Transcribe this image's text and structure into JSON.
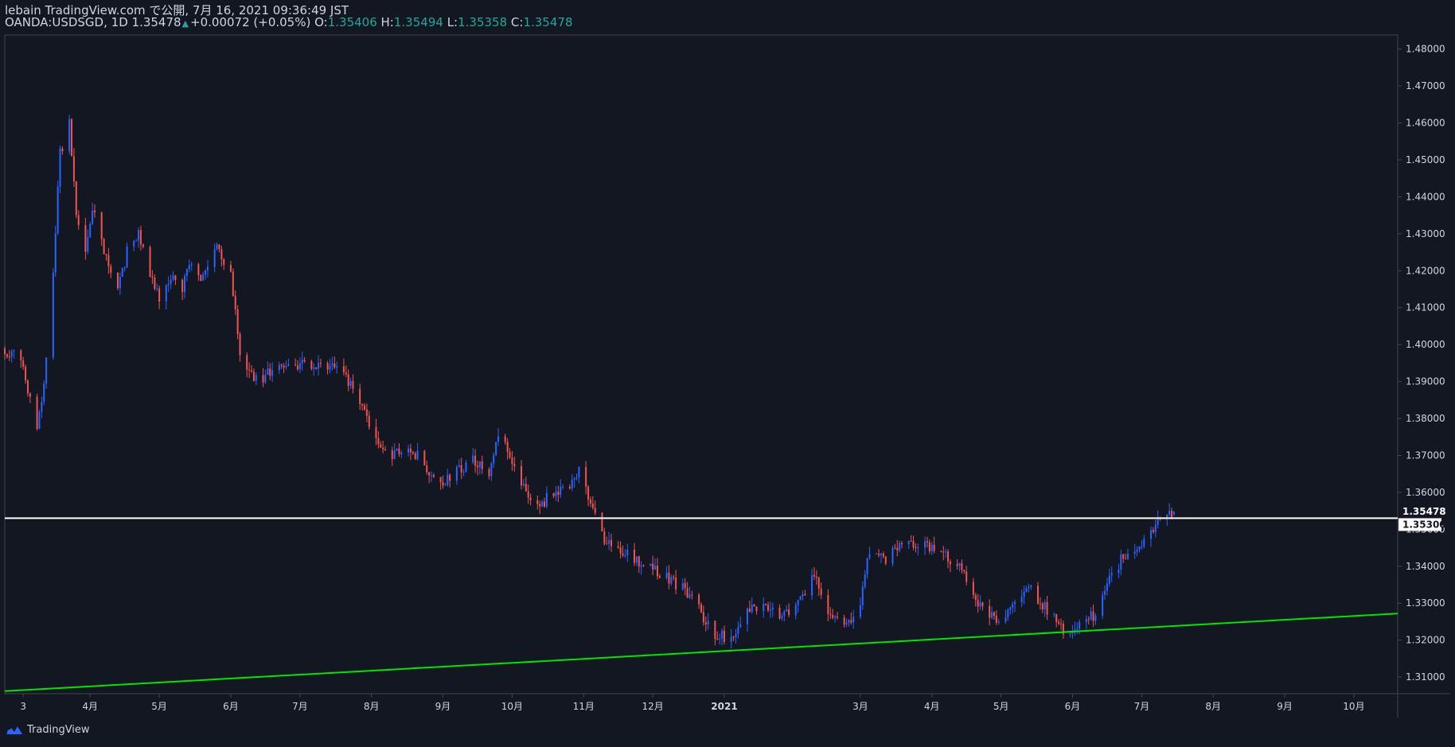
{
  "header": {
    "line1": "lebain TradingView.com で公開, 7月 16, 2021 09:36:49 JST",
    "symbol": "OANDA:USDSGD, 1D",
    "last": "1.35478",
    "change": "+0.00072 (+0.05%)",
    "o_label": "O:",
    "o_value": "1.35406",
    "h_label": "H:",
    "h_value": "1.35494",
    "l_label": "L:",
    "l_value": "1.35358",
    "c_label": "C:",
    "c_value": "1.35478"
  },
  "footer": {
    "brand": "TradingView",
    "logo_icon": "tradingview-logo-icon"
  },
  "colors": {
    "background": "#131722",
    "up": "#2962ff",
    "down": "#ef5350",
    "support_line": "#00e600",
    "resistance_line": "#ffffff",
    "axis_text": "#d1d4dc",
    "frame": "#434651"
  },
  "chart_data": {
    "type": "candlestick",
    "symbol": "OANDA:USDSGD",
    "interval": "1D",
    "ylim": [
      1.3055,
      1.4838
    ],
    "y_ticks": [
      "1.48000",
      "1.47000",
      "1.46000",
      "1.45000",
      "1.44000",
      "1.43000",
      "1.42000",
      "1.41000",
      "1.40000",
      "1.39000",
      "1.38000",
      "1.37000",
      "1.36000",
      "1.35000",
      "1.34000",
      "1.33000",
      "1.32000",
      "1.31000"
    ],
    "x_ticks": [
      {
        "label": "3",
        "date": "2020-03-03"
      },
      {
        "label": "4月",
        "date": "2020-04-01"
      },
      {
        "label": "5月",
        "date": "2020-05-01"
      },
      {
        "label": "6月",
        "date": "2020-06-01"
      },
      {
        "label": "7月",
        "date": "2020-07-01"
      },
      {
        "label": "8月",
        "date": "2020-08-01"
      },
      {
        "label": "9月",
        "date": "2020-09-01"
      },
      {
        "label": "10月",
        "date": "2020-10-01"
      },
      {
        "label": "11月",
        "date": "2020-11-01"
      },
      {
        "label": "12月",
        "date": "2020-12-01"
      },
      {
        "label": "2021",
        "date": "2021-01-01"
      },
      {
        "label": "3月",
        "date": "2021-03-01"
      },
      {
        "label": "4月",
        "date": "2021-04-01"
      },
      {
        "label": "5月",
        "date": "2021-05-01"
      },
      {
        "label": "6月",
        "date": "2021-06-01"
      },
      {
        "label": "7月",
        "date": "2021-07-01"
      },
      {
        "label": "8月",
        "date": "2021-08-01"
      },
      {
        "label": "9月",
        "date": "2021-09-01"
      },
      {
        "label": "10月",
        "date": "2021-10-01"
      }
    ],
    "price_path": [
      [
        "2020-02-24",
        1.399
      ],
      [
        "2020-03-02",
        1.395
      ],
      [
        "2020-03-09",
        1.378
      ],
      [
        "2020-03-12",
        1.39
      ],
      [
        "2020-03-16",
        1.42
      ],
      [
        "2020-03-19",
        1.452
      ],
      [
        "2020-03-23",
        1.46
      ],
      [
        "2020-03-26",
        1.435
      ],
      [
        "2020-03-30",
        1.425
      ],
      [
        "2020-04-02",
        1.438
      ],
      [
        "2020-04-07",
        1.425
      ],
      [
        "2020-04-13",
        1.415
      ],
      [
        "2020-04-17",
        1.425
      ],
      [
        "2020-04-22",
        1.431
      ],
      [
        "2020-04-27",
        1.42
      ],
      [
        "2020-05-01",
        1.412
      ],
      [
        "2020-05-06",
        1.419
      ],
      [
        "2020-05-11",
        1.415
      ],
      [
        "2020-05-15",
        1.423
      ],
      [
        "2020-05-20",
        1.418
      ],
      [
        "2020-05-26",
        1.426
      ],
      [
        "2020-06-01",
        1.42
      ],
      [
        "2020-06-05",
        1.397
      ],
      [
        "2020-06-10",
        1.392
      ],
      [
        "2020-06-15",
        1.39
      ],
      [
        "2020-06-20",
        1.395
      ],
      [
        "2020-06-30",
        1.394
      ],
      [
        "2020-07-10",
        1.395
      ],
      [
        "2020-07-20",
        1.392
      ],
      [
        "2020-07-27",
        1.385
      ],
      [
        "2020-08-03",
        1.375
      ],
      [
        "2020-08-10",
        1.37
      ],
      [
        "2020-08-17",
        1.372
      ],
      [
        "2020-08-24",
        1.368
      ],
      [
        "2020-08-31",
        1.362
      ],
      [
        "2020-09-07",
        1.366
      ],
      [
        "2020-09-14",
        1.369
      ],
      [
        "2020-09-21",
        1.364
      ],
      [
        "2020-09-24",
        1.375
      ],
      [
        "2020-09-28",
        1.372
      ],
      [
        "2020-10-05",
        1.362
      ],
      [
        "2020-10-12",
        1.356
      ],
      [
        "2020-10-19",
        1.36
      ],
      [
        "2020-10-26",
        1.362
      ],
      [
        "2020-10-30",
        1.366
      ],
      [
        "2020-11-04",
        1.356
      ],
      [
        "2020-11-09",
        1.348
      ],
      [
        "2020-11-16",
        1.345
      ],
      [
        "2020-11-23",
        1.342
      ],
      [
        "2020-11-30",
        1.34
      ],
      [
        "2020-12-07",
        1.337
      ],
      [
        "2020-12-14",
        1.334
      ],
      [
        "2020-12-21",
        1.328
      ],
      [
        "2020-12-28",
        1.322
      ],
      [
        "2021-01-05",
        1.32
      ],
      [
        "2021-01-12",
        1.328
      ],
      [
        "2021-01-19",
        1.33
      ],
      [
        "2021-01-26",
        1.326
      ],
      [
        "2021-02-02",
        1.33
      ],
      [
        "2021-02-09",
        1.337
      ],
      [
        "2021-02-16",
        1.326
      ],
      [
        "2021-02-23",
        1.324
      ],
      [
        "2021-03-01",
        1.33
      ],
      [
        "2021-03-05",
        1.344
      ],
      [
        "2021-03-12",
        1.342
      ],
      [
        "2021-03-19",
        1.345
      ],
      [
        "2021-03-26",
        1.346
      ],
      [
        "2021-04-02",
        1.344
      ],
      [
        "2021-04-09",
        1.342
      ],
      [
        "2021-04-16",
        1.337
      ],
      [
        "2021-04-23",
        1.328
      ],
      [
        "2021-04-30",
        1.325
      ],
      [
        "2021-05-07",
        1.33
      ],
      [
        "2021-05-14",
        1.334
      ],
      [
        "2021-05-21",
        1.328
      ],
      [
        "2021-05-28",
        1.323
      ],
      [
        "2021-06-04",
        1.324
      ],
      [
        "2021-06-11",
        1.327
      ],
      [
        "2021-06-16",
        1.335
      ],
      [
        "2021-06-23",
        1.343
      ],
      [
        "2021-06-30",
        1.345
      ],
      [
        "2021-07-07",
        1.352
      ],
      [
        "2021-07-12",
        1.3545
      ],
      [
        "2021-07-15",
        1.35478
      ]
    ],
    "last_bar": {
      "open": 1.35406,
      "high": 1.35494,
      "low": 1.35358,
      "close": 1.35478
    },
    "resistance_line": {
      "price": 1.353,
      "label": "1.35300"
    },
    "support_line": {
      "points": [
        [
          "2020-02-24",
          1.3062
        ],
        [
          "2021-10-20",
          1.3272
        ]
      ]
    },
    "price_label": "1.35478"
  }
}
